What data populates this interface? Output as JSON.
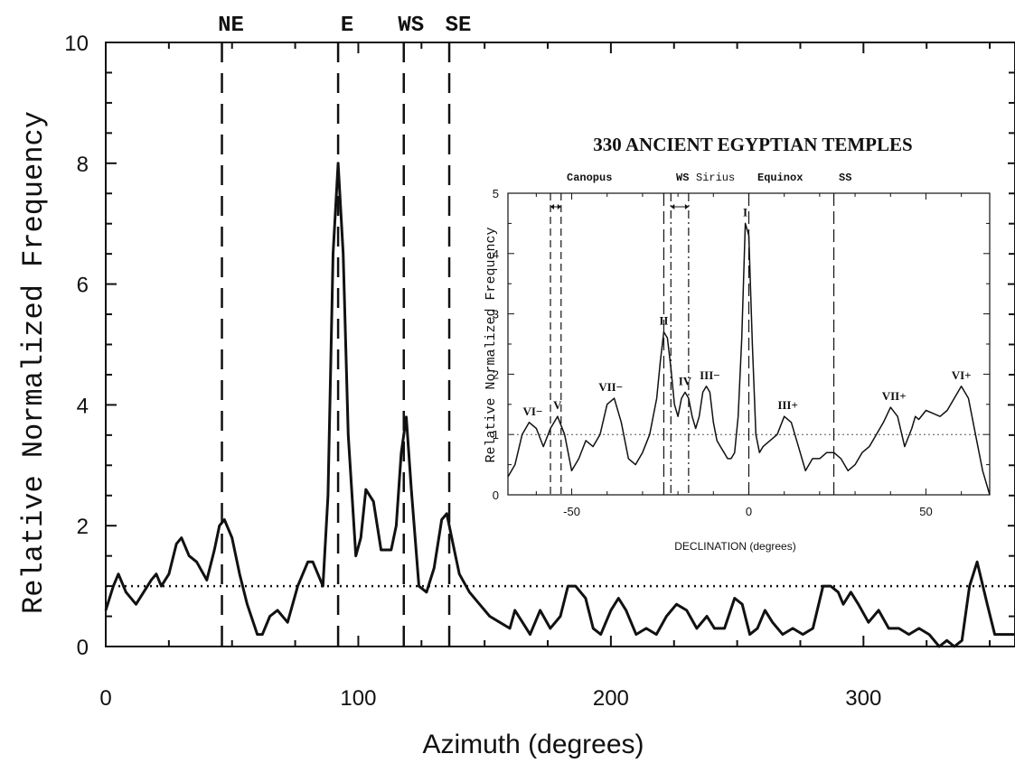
{
  "chart_data": [
    {
      "type": "line",
      "xlabel": "Azimuth (degrees)",
      "ylabel": "Relative Normalized Frequency",
      "xlim": [
        0,
        360
      ],
      "ylim": [
        0,
        10
      ],
      "xticks": [
        0,
        100,
        200,
        300
      ],
      "yticks": [
        0,
        2,
        4,
        6,
        8,
        10
      ],
      "reference_level": 1.0,
      "reference_lines": [
        {
          "label": "NE",
          "x": 46
        },
        {
          "label": "E",
          "x": 92
        },
        {
          "label": "WS",
          "x": 118
        },
        {
          "label": "SE",
          "x": 136
        }
      ],
      "series": [
        {
          "x": [
            0,
            3,
            5,
            8,
            12,
            15,
            18,
            20,
            22,
            25,
            28,
            30,
            33,
            36,
            40,
            43,
            45,
            47,
            50,
            53,
            56,
            60,
            62,
            65,
            68,
            72,
            76,
            80,
            82,
            86,
            88,
            90,
            92,
            94,
            96,
            99,
            101,
            103,
            106,
            109,
            111,
            113,
            115,
            117,
            119,
            121,
            124,
            127,
            130,
            133,
            135,
            137,
            140,
            144,
            148,
            152,
            156,
            160,
            162,
            165,
            168,
            172,
            176,
            180,
            183,
            186,
            190,
            193,
            196,
            200,
            203,
            206,
            210,
            214,
            218,
            222,
            226,
            230,
            234,
            238,
            241,
            245,
            249,
            252,
            255,
            258,
            261,
            264,
            268,
            272,
            276,
            280,
            284,
            287,
            290,
            292,
            295,
            298,
            302,
            306,
            310,
            314,
            318,
            322,
            326,
            330,
            333,
            336,
            339,
            340,
            342,
            345,
            349,
            352,
            356,
            360
          ],
          "y": [
            0.6,
            1.0,
            1.2,
            0.9,
            0.7,
            0.9,
            1.1,
            1.2,
            1.0,
            1.2,
            1.7,
            1.8,
            1.5,
            1.4,
            1.1,
            1.6,
            2.0,
            2.1,
            1.8,
            1.2,
            0.7,
            0.2,
            0.2,
            0.5,
            0.6,
            0.4,
            1.0,
            1.4,
            1.4,
            1.0,
            2.5,
            6.5,
            8.0,
            6.5,
            3.5,
            1.5,
            1.8,
            2.6,
            2.4,
            1.6,
            1.6,
            1.6,
            2.0,
            3.2,
            3.8,
            2.6,
            1.0,
            0.9,
            1.3,
            2.1,
            2.2,
            1.8,
            1.2,
            0.9,
            0.7,
            0.5,
            0.4,
            0.3,
            0.6,
            0.4,
            0.2,
            0.6,
            0.3,
            0.5,
            1.0,
            1.0,
            0.8,
            0.3,
            0.2,
            0.6,
            0.8,
            0.6,
            0.2,
            0.3,
            0.2,
            0.5,
            0.7,
            0.6,
            0.3,
            0.5,
            0.3,
            0.3,
            0.8,
            0.7,
            0.2,
            0.3,
            0.6,
            0.4,
            0.2,
            0.3,
            0.2,
            0.3,
            1.0,
            1.0,
            0.9,
            0.7,
            0.9,
            0.7,
            0.4,
            0.6,
            0.3,
            0.3,
            0.2,
            0.3,
            0.2,
            0.0,
            0.1,
            0.0,
            0.1,
            0.4,
            1.0,
            1.4,
            0.7,
            0.2,
            0.2,
            0.2
          ]
        }
      ]
    },
    {
      "type": "line",
      "title": "330 ANCIENT EGYPTIAN TEMPLES",
      "xlabel": "DECLINATION (degrees)",
      "ylabel": "Relative Normalized Frequency",
      "xlim": [
        -68,
        68
      ],
      "ylim": [
        0,
        5
      ],
      "xticks": [
        -50,
        0,
        50
      ],
      "yticks": [
        0,
        1,
        2,
        3,
        4,
        5
      ],
      "reference_level": 1.0,
      "reference_lines": [
        {
          "label": "Canopus",
          "x": [
            -56,
            -53
          ],
          "style": "dashed"
        },
        {
          "label": "WS",
          "x": -24,
          "style": "long-dash"
        },
        {
          "label": "Sirius",
          "x": [
            -22,
            -17
          ],
          "style": "dash-dot"
        },
        {
          "label": "Equinox",
          "x": 0,
          "style": "long-dash"
        },
        {
          "label": "SS",
          "x": 24,
          "style": "long-dash"
        }
      ],
      "peak_labels": [
        {
          "label": "VI−",
          "x": -61,
          "y": 1.2
        },
        {
          "label": "V",
          "x": -54,
          "y": 1.3
        },
        {
          "label": "VII−",
          "x": -39,
          "y": 1.6
        },
        {
          "label": "II",
          "x": -24,
          "y": 2.7
        },
        {
          "label": "IV",
          "x": -18,
          "y": 1.7
        },
        {
          "label": "III−",
          "x": -11,
          "y": 1.8
        },
        {
          "label": "I",
          "x": -1,
          "y": 4.5
        },
        {
          "label": "III+",
          "x": 11,
          "y": 1.3
        },
        {
          "label": "VII+",
          "x": 41,
          "y": 1.45
        },
        {
          "label": "VI+",
          "x": 60,
          "y": 1.8
        }
      ],
      "series": [
        {
          "x": [
            -68,
            -66,
            -64,
            -62,
            -60,
            -58,
            -56,
            -54,
            -52,
            -50,
            -48,
            -46,
            -44,
            -42,
            -40,
            -38,
            -36,
            -34,
            -32,
            -30,
            -28,
            -26,
            -25,
            -24,
            -23,
            -22,
            -21,
            -20,
            -19,
            -18,
            -17,
            -16,
            -15,
            -14,
            -13,
            -12,
            -11,
            -10,
            -9,
            -8,
            -7,
            -6,
            -5,
            -4,
            -3,
            -2,
            -1,
            0,
            1,
            2,
            3,
            4,
            6,
            8,
            10,
            12,
            14,
            16,
            18,
            20,
            22,
            24,
            26,
            28,
            30,
            32,
            34,
            36,
            38,
            40,
            42,
            44,
            46,
            47,
            48,
            50,
            52,
            54,
            56,
            58,
            60,
            62,
            64,
            66,
            68
          ],
          "y": [
            0.3,
            0.5,
            1.0,
            1.2,
            1.1,
            0.8,
            1.1,
            1.3,
            1.0,
            0.4,
            0.6,
            0.9,
            0.8,
            1.0,
            1.5,
            1.6,
            1.2,
            0.6,
            0.5,
            0.7,
            1.0,
            1.6,
            2.2,
            2.7,
            2.6,
            2.1,
            1.5,
            1.3,
            1.6,
            1.7,
            1.6,
            1.3,
            1.1,
            1.3,
            1.7,
            1.8,
            1.7,
            1.2,
            0.9,
            0.8,
            0.7,
            0.6,
            0.6,
            0.7,
            1.3,
            2.6,
            4.5,
            4.3,
            2.5,
            1.0,
            0.7,
            0.8,
            0.9,
            1.0,
            1.3,
            1.2,
            0.8,
            0.4,
            0.6,
            0.6,
            0.7,
            0.7,
            0.6,
            0.4,
            0.5,
            0.7,
            0.8,
            1.0,
            1.2,
            1.45,
            1.3,
            0.8,
            1.1,
            1.3,
            1.25,
            1.4,
            1.35,
            1.3,
            1.4,
            1.6,
            1.8,
            1.6,
            1.0,
            0.4,
            0.0
          ]
        }
      ]
    }
  ]
}
